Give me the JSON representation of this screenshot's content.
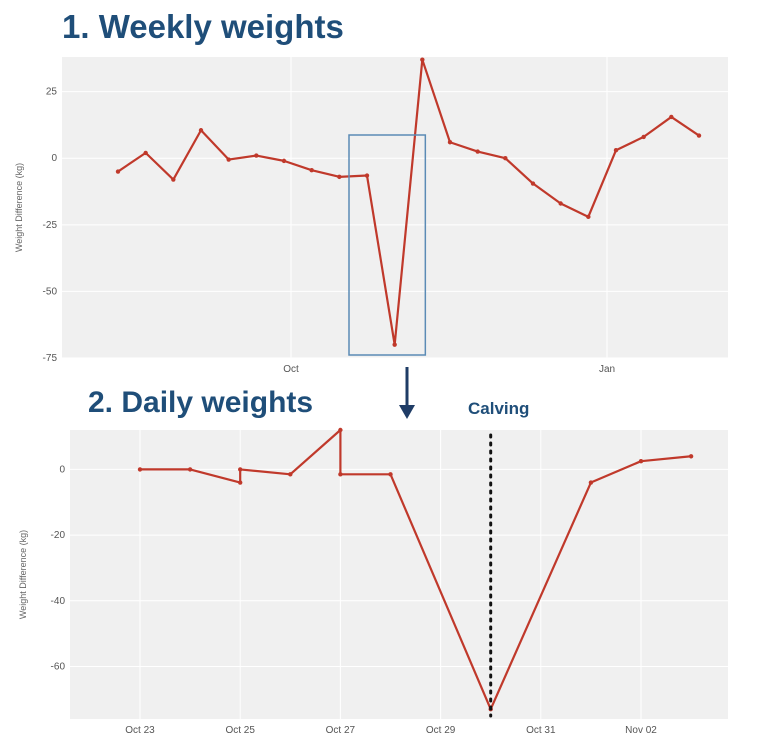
{
  "headings": {
    "weekly": "1. Weekly weights",
    "daily": "2. Daily weights",
    "calving": "Calving"
  },
  "colors": {
    "line": "#c0392b",
    "panel_bg": "#f0f0f0",
    "grid": "#ffffff",
    "highlight_box": "#5b8bb5",
    "heading": "#1f4e79",
    "arrow": "#1f3c66"
  },
  "icons": {
    "down_arrow": "arrow-down-icon"
  },
  "chart_data": [
    {
      "type": "line",
      "title": "",
      "xlabel": "",
      "ylabel": "Weight Difference (kg)",
      "x_ticks": [
        "Oct",
        "Jan"
      ],
      "y_ticks": [
        25,
        0,
        -25,
        -50,
        -75
      ],
      "ylim": [
        -75,
        38
      ],
      "grid": true,
      "series": [
        {
          "values": [
            -5,
            2,
            -8,
            10.5,
            -0.5,
            1,
            -1,
            -4.5,
            -7,
            -6.5,
            -70,
            37,
            6,
            2.5,
            0,
            -9.5,
            -17,
            -22,
            3,
            8,
            15.5,
            8.5
          ]
        }
      ],
      "highlight": {
        "from_index": 9,
        "to_index": 11
      }
    },
    {
      "type": "line",
      "title": "",
      "xlabel": "",
      "ylabel": "Weight Difference (kg)",
      "x_ticks": [
        "Oct 23",
        "Oct 25",
        "Oct 27",
        "Oct 29",
        "Oct 31",
        "Nov 02"
      ],
      "y_ticks": [
        0,
        -20,
        -40,
        -60
      ],
      "ylim": [
        -76,
        12
      ],
      "grid": true,
      "series": [
        {
          "x": [
            "Oct 23",
            "Oct 24",
            "Oct 25",
            "Oct 25",
            "Oct 26",
            "Oct 27",
            "Oct 27",
            "Oct 28",
            "Oct 30",
            "Nov 01",
            "Nov 02",
            "Nov 03"
          ],
          "values": [
            0,
            0,
            -4,
            0,
            -1.5,
            12,
            -1.5,
            -1.5,
            -73,
            -4,
            2.5,
            4
          ]
        }
      ],
      "annotations": [
        {
          "x": "Oct 30",
          "label": "Calving",
          "style": "dotted-vertical-line"
        }
      ]
    }
  ]
}
